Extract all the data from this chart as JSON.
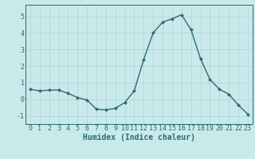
{
  "x": [
    0,
    1,
    2,
    3,
    4,
    5,
    6,
    7,
    8,
    9,
    10,
    11,
    12,
    13,
    14,
    15,
    16,
    17,
    18,
    19,
    20,
    21,
    22,
    23
  ],
  "y": [
    0.6,
    0.5,
    0.55,
    0.55,
    0.35,
    0.1,
    -0.05,
    -0.6,
    -0.65,
    -0.55,
    -0.2,
    0.5,
    2.4,
    4.0,
    4.65,
    4.85,
    5.1,
    4.2,
    2.45,
    1.2,
    0.6,
    0.3,
    -0.35,
    -0.9
  ],
  "line_color": "#2e6b6b",
  "marker": "D",
  "marker_size": 2.0,
  "linewidth": 1.0,
  "background_color": "#c8eaea",
  "grid_color": "#afd4d4",
  "xlabel": "Humidex (Indice chaleur)",
  "xlabel_fontsize": 7,
  "tick_fontsize": 6,
  "ylim": [
    -1.5,
    5.7
  ],
  "xlim": [
    -0.5,
    23.5
  ],
  "yticks": [
    -1,
    0,
    1,
    2,
    3,
    4,
    5
  ],
  "xticks": [
    0,
    1,
    2,
    3,
    4,
    5,
    6,
    7,
    8,
    9,
    10,
    11,
    12,
    13,
    14,
    15,
    16,
    17,
    18,
    19,
    20,
    21,
    22,
    23
  ]
}
